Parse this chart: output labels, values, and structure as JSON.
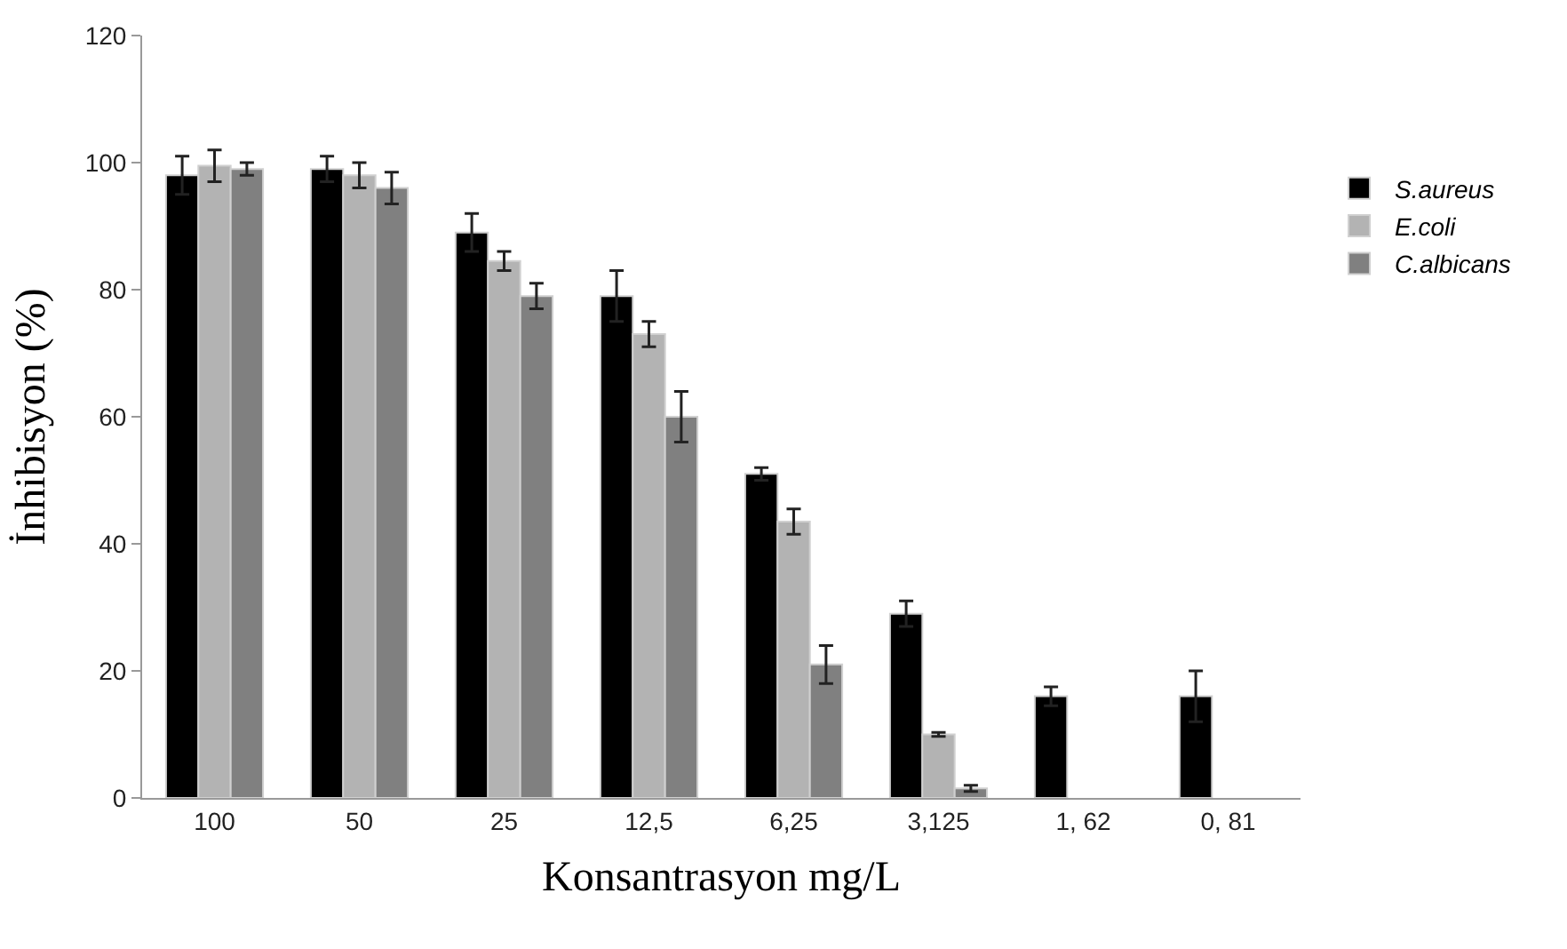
{
  "chart_data": {
    "type": "bar",
    "xlabel": "Konsantrasyon mg/L",
    "ylabel": "İnhibisyon (%)",
    "categories": [
      "100",
      "50",
      "25",
      "12,5",
      "6,25",
      "3,125",
      "1, 62",
      "0, 81"
    ],
    "series": [
      {
        "name": "S.aureus",
        "color": "#000000",
        "values": [
          98,
          99,
          89,
          79,
          51,
          29,
          16,
          16
        ],
        "errors": [
          3,
          2,
          3,
          4,
          1,
          2,
          1.5,
          4
        ]
      },
      {
        "name": "E.coli",
        "color": "#b3b3b3",
        "values": [
          99.5,
          98,
          84.5,
          73,
          43.5,
          10,
          null,
          null
        ],
        "errors": [
          2.5,
          2,
          1.5,
          2,
          2,
          0.3,
          null,
          null
        ]
      },
      {
        "name": "C.albicans",
        "color": "#808080",
        "values": [
          99,
          96,
          79,
          60,
          21,
          1.5,
          null,
          null
        ],
        "errors": [
          1,
          2.5,
          2,
          4,
          3,
          0.5,
          null,
          null
        ]
      }
    ],
    "ylim": [
      0,
      120
    ],
    "yticks": [
      0,
      20,
      40,
      60,
      80,
      100,
      120
    ],
    "legend": "right"
  }
}
